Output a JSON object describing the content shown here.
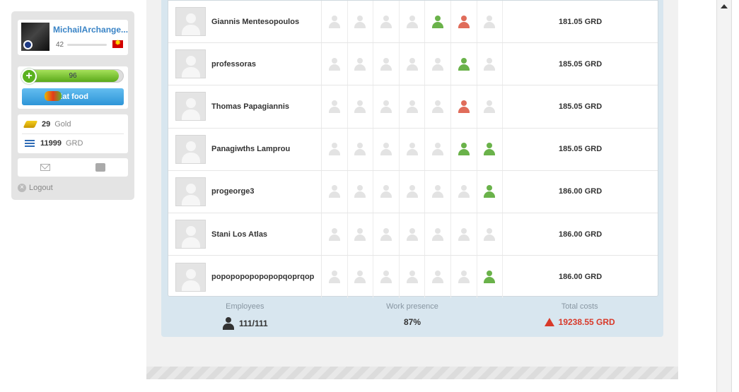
{
  "sidebar": {
    "username": "MichailArchange...",
    "level": "42",
    "health_value": "96",
    "health_percent": 96,
    "eat_food_label": "Eat food",
    "gold_amount": "29",
    "gold_unit": "Gold",
    "currency_amount": "11999",
    "currency_unit": "GRD",
    "logout_label": "Logout"
  },
  "employees": [
    {
      "name": "Giannis Mentesopoulos",
      "days": [
        "none",
        "none",
        "none",
        "none",
        "worked",
        "missed",
        "none"
      ],
      "salary": "181.05 GRD"
    },
    {
      "name": "professoras",
      "days": [
        "none",
        "none",
        "none",
        "none",
        "none",
        "worked",
        "none"
      ],
      "salary": "185.05 GRD"
    },
    {
      "name": "Thomas Papagiannis",
      "days": [
        "none",
        "none",
        "none",
        "none",
        "none",
        "missed",
        "none"
      ],
      "salary": "185.05 GRD"
    },
    {
      "name": "Panagiwths Lamprou",
      "days": [
        "none",
        "none",
        "none",
        "none",
        "none",
        "worked",
        "worked"
      ],
      "salary": "185.05 GRD"
    },
    {
      "name": "progeorge3",
      "days": [
        "none",
        "none",
        "none",
        "none",
        "none",
        "none",
        "worked"
      ],
      "salary": "186.00 GRD"
    },
    {
      "name": "Stani Los Atlas",
      "days": [
        "none",
        "none",
        "none",
        "none",
        "none",
        "none",
        "none"
      ],
      "salary": "186.00 GRD"
    },
    {
      "name": "popopopopopopopqoprqop",
      "days": [
        "none",
        "none",
        "none",
        "none",
        "none",
        "none",
        "worked"
      ],
      "salary": "186.00 GRD"
    }
  ],
  "summary": {
    "employees_label": "Employees",
    "employees_value": "111/111",
    "presence_label": "Work presence",
    "presence_value": "87%",
    "costs_label": "Total costs",
    "costs_value": "19238.55 GRD"
  },
  "colors": {
    "worked": "#6ab24a",
    "missed": "#e06c5a",
    "none": "#e3e3e3",
    "accent": "#3a84c6"
  }
}
